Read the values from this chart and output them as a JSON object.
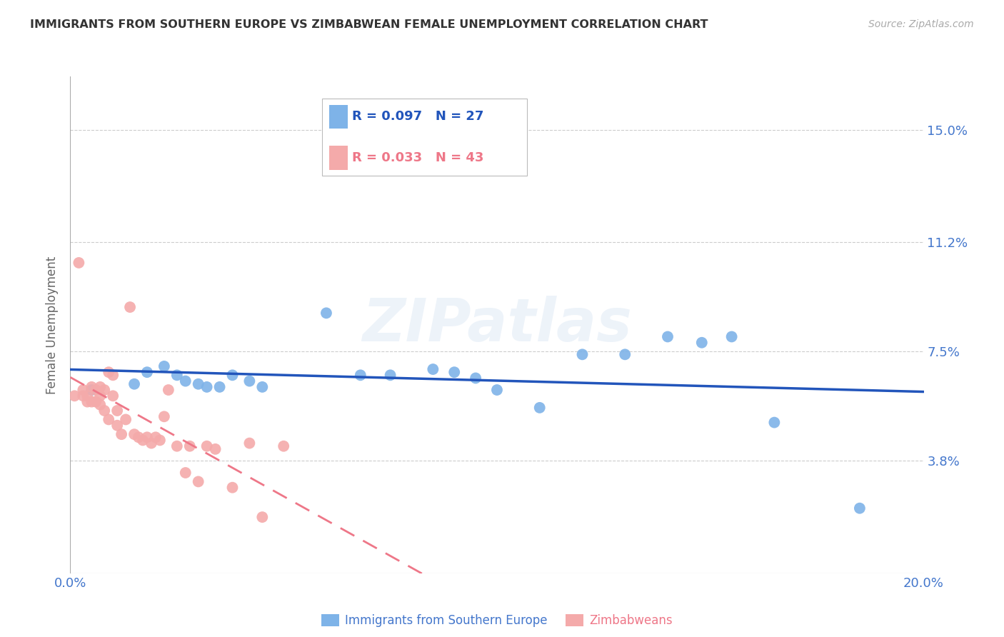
{
  "title": "IMMIGRANTS FROM SOUTHERN EUROPE VS ZIMBABWEAN FEMALE UNEMPLOYMENT CORRELATION CHART",
  "source": "Source: ZipAtlas.com",
  "ylabel": "Female Unemployment",
  "xlim": [
    0.0,
    0.2
  ],
  "ylim": [
    0.0,
    0.168
  ],
  "yticks": [
    0.038,
    0.075,
    0.112,
    0.15
  ],
  "ytick_labels": [
    "3.8%",
    "7.5%",
    "11.2%",
    "15.0%"
  ],
  "xticks": [
    0.0,
    0.04,
    0.08,
    0.12,
    0.16,
    0.2
  ],
  "xtick_labels": [
    "0.0%",
    "",
    "",
    "",
    "",
    "20.0%"
  ],
  "blue_color": "#7EB3E8",
  "pink_color": "#F4AAAA",
  "blue_line_color": "#2255BB",
  "pink_line_color": "#EE7788",
  "legend_R_blue": "R = 0.097",
  "legend_N_blue": "N = 27",
  "legend_R_pink": "R = 0.033",
  "legend_N_pink": "N = 43",
  "blue_scatter_x": [
    0.005,
    0.015,
    0.018,
    0.022,
    0.025,
    0.027,
    0.03,
    0.032,
    0.035,
    0.038,
    0.042,
    0.045,
    0.06,
    0.068,
    0.075,
    0.085,
    0.09,
    0.095,
    0.1,
    0.11,
    0.12,
    0.13,
    0.14,
    0.148,
    0.155,
    0.165,
    0.185
  ],
  "blue_scatter_y": [
    0.062,
    0.064,
    0.068,
    0.07,
    0.067,
    0.065,
    0.064,
    0.063,
    0.063,
    0.067,
    0.065,
    0.063,
    0.088,
    0.067,
    0.067,
    0.069,
    0.068,
    0.066,
    0.062,
    0.056,
    0.074,
    0.074,
    0.08,
    0.078,
    0.08,
    0.051,
    0.022
  ],
  "pink_scatter_x": [
    0.001,
    0.002,
    0.003,
    0.003,
    0.004,
    0.004,
    0.005,
    0.005,
    0.006,
    0.006,
    0.007,
    0.007,
    0.007,
    0.008,
    0.008,
    0.009,
    0.009,
    0.01,
    0.01,
    0.011,
    0.011,
    0.012,
    0.013,
    0.014,
    0.015,
    0.016,
    0.017,
    0.018,
    0.019,
    0.02,
    0.021,
    0.022,
    0.023,
    0.025,
    0.027,
    0.028,
    0.03,
    0.032,
    0.034,
    0.038,
    0.042,
    0.045,
    0.05
  ],
  "pink_scatter_y": [
    0.06,
    0.105,
    0.062,
    0.06,
    0.06,
    0.058,
    0.063,
    0.058,
    0.062,
    0.058,
    0.063,
    0.06,
    0.057,
    0.062,
    0.055,
    0.068,
    0.052,
    0.067,
    0.06,
    0.055,
    0.05,
    0.047,
    0.052,
    0.09,
    0.047,
    0.046,
    0.045,
    0.046,
    0.044,
    0.046,
    0.045,
    0.053,
    0.062,
    0.043,
    0.034,
    0.043,
    0.031,
    0.043,
    0.042,
    0.029,
    0.044,
    0.019,
    0.043
  ],
  "watermark": "ZIPatlas",
  "background_color": "#FFFFFF",
  "grid_color": "#CCCCCC",
  "axis_color": "#AAAAAA",
  "label_color": "#4477CC",
  "title_color": "#333333",
  "source_color": "#AAAAAA"
}
